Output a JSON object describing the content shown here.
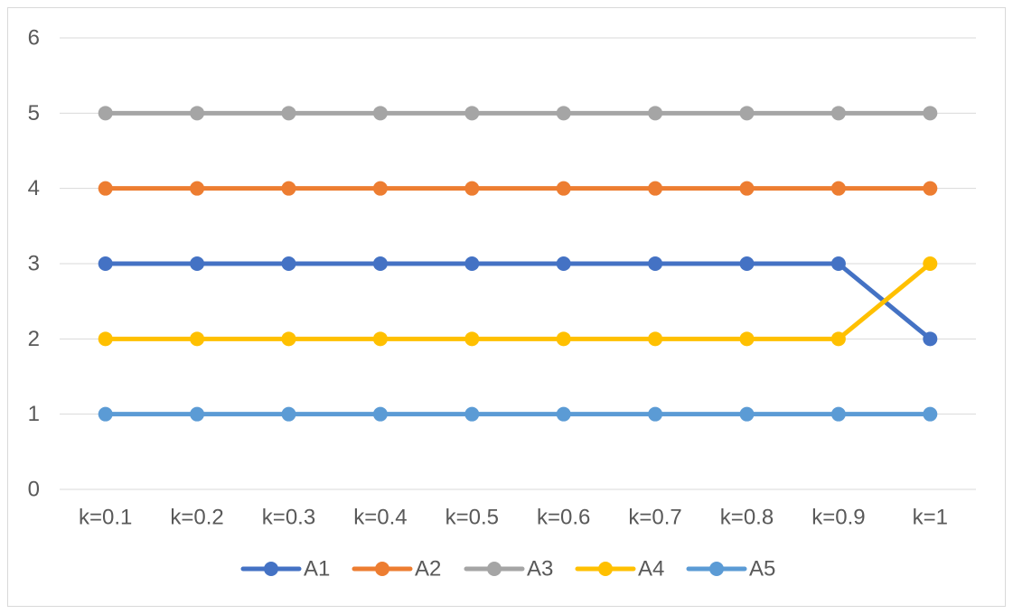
{
  "chart_data": {
    "type": "line",
    "title": "",
    "xlabel": "",
    "ylabel": "",
    "categories": [
      "k=0.1",
      "k=0.2",
      "k=0.3",
      "k=0.4",
      "k=0.5",
      "k=0.6",
      "k=0.7",
      "k=0.8",
      "k=0.9",
      "k=1"
    ],
    "ylim": [
      0,
      6
    ],
    "yticks": [
      0,
      1,
      2,
      3,
      4,
      5,
      6
    ],
    "grid": true,
    "legend_position": "bottom",
    "series": [
      {
        "name": "A1",
        "color": "#4472C4",
        "values": [
          3,
          3,
          3,
          3,
          3,
          3,
          3,
          3,
          3,
          2
        ]
      },
      {
        "name": "A2",
        "color": "#ED7D31",
        "values": [
          4,
          4,
          4,
          4,
          4,
          4,
          4,
          4,
          4,
          4
        ]
      },
      {
        "name": "A3",
        "color": "#A5A5A5",
        "values": [
          5,
          5,
          5,
          5,
          5,
          5,
          5,
          5,
          5,
          5
        ]
      },
      {
        "name": "A4",
        "color": "#FFC000",
        "values": [
          2,
          2,
          2,
          2,
          2,
          2,
          2,
          2,
          2,
          3
        ]
      },
      {
        "name": "A5",
        "color": "#5B9BD5",
        "values": [
          1,
          1,
          1,
          1,
          1,
          1,
          1,
          1,
          1,
          1
        ]
      }
    ]
  }
}
